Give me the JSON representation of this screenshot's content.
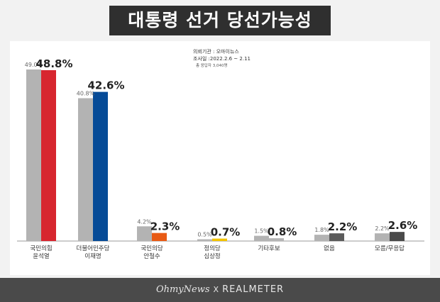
{
  "title": "대통령 선거 당선가능성",
  "meta": {
    "org": "의뢰기관 : 오마이뉴스",
    "period": "조사일 :2022.2.6 ~ 2.11",
    "sample": "총 응답자 3,040명"
  },
  "footer": {
    "left": "OhmyNews",
    "sep": "X",
    "right": "REALMETER"
  },
  "colors": {
    "prev": "#b3b3b3",
    "bars": [
      "#d7262f",
      "#064b97",
      "#e85a14",
      "#f3c300",
      "#b5b5b5",
      "#5b5b5b",
      "#4a4a4a"
    ]
  },
  "chart_data": {
    "type": "bar",
    "categories": [
      "국민의힘\n윤석열",
      "더불어민주당\n이재명",
      "국민의당\n안철수",
      "정의당\n심상정",
      "기타후보",
      "없음",
      "모름/무응답"
    ],
    "series": [
      {
        "values": [
          49.0,
          40.8,
          4.2,
          0.5,
          1.5,
          1.8,
          2.2
        ],
        "labels": [
          "49.0%",
          "40.8%",
          "4.2%",
          "0.5%",
          "1.5%",
          "1.8%",
          "2.2%"
        ]
      },
      {
        "values": [
          48.8,
          42.6,
          2.3,
          0.7,
          0.8,
          2.2,
          2.6
        ],
        "labels": [
          "48.8%",
          "42.6%",
          "2.3%",
          "0.7%",
          "0.8%",
          "2.2%",
          "2.6%"
        ]
      }
    ],
    "ylim": [
      0,
      49.0
    ],
    "grid": false,
    "legend": "none"
  }
}
